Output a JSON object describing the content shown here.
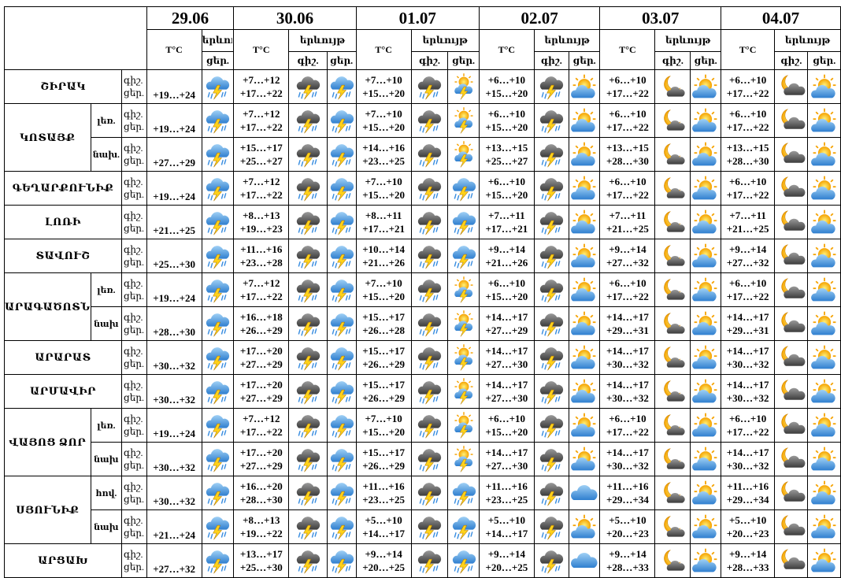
{
  "header": {
    "dates": [
      "29.06",
      "30.06",
      "01.07",
      "02.07",
      "03.07",
      "04.07"
    ],
    "temp_label": "T°C",
    "phen_label": "երևույթ",
    "night": "գիշ.",
    "day": "ցեր."
  },
  "groups": [
    {
      "name": "ՇԻՐԱԿ",
      "temps": [
        "+19…+24",
        "+7…+12",
        "+17…+22",
        "+7…+10",
        "+15…+20",
        "+6…+10",
        "+15…+20",
        "+6…+10",
        "+17…+22",
        "+6…+10",
        "+17…+22"
      ]
    },
    {
      "name": "ԿՈՏԱՅՔ",
      "subs": [
        {
          "name": "լեռ.",
          "temps": [
            "+19…+24",
            "+7…+12",
            "+17…+22",
            "+7…+10",
            "+15…+20",
            "+6…+10",
            "+15…+20",
            "+6…+10",
            "+17…+22",
            "+6…+10",
            "+17…+22"
          ]
        },
        {
          "name": "նախ.",
          "temps": [
            "+27…+29",
            "+15…+17",
            "+25…+27",
            "+14…+16",
            "+23…+25",
            "+13…+15",
            "+25…+27",
            "+13…+15",
            "+28…+30",
            "+13…+15",
            "+28…+30"
          ]
        }
      ]
    },
    {
      "name": "ԳԵՂԱՐՔՈՒՆԻՔ",
      "temps": [
        "+19…+24",
        "+7…+12",
        "+17…+22",
        "+7…+10",
        "+15…+20",
        "+6…+10",
        "+15…+20",
        "+6…+10",
        "+17…+22",
        "+6…+10",
        "+17…+22"
      ]
    },
    {
      "name": "ԼՈՌԻ",
      "temps": [
        "+21…+25",
        "+8…+13",
        "+19…+23",
        "+8…+11",
        "+17…+21",
        "+7…+11",
        "+17…+21",
        "+7…+11",
        "+21…+25",
        "+7…+11",
        "+21…+25"
      ]
    },
    {
      "name": "ՏԱՎՈՒՇ",
      "temps": [
        "+25…+30",
        "+11…+16",
        "+23…+28",
        "+10…+14",
        "+21…+26",
        "+9…+14",
        "+21…+26",
        "+9…+14",
        "+27…+32",
        "+9…+14",
        "+27…+32"
      ]
    },
    {
      "name": "ԱՐԱԳԱԾՈՏՆ",
      "subs": [
        {
          "name": "լեռ.",
          "temps": [
            "+19…+24",
            "+7…+12",
            "+17…+22",
            "+7…+10",
            "+15…+20",
            "+6…+10",
            "+15…+20",
            "+6…+10",
            "+17…+22",
            "+6…+10",
            "+17…+22"
          ]
        },
        {
          "name": "նախ",
          "temps": [
            "+28…+30",
            "+16…+18",
            "+26…+29",
            "+15…+17",
            "+26…+28",
            "+14…+17",
            "+27…+29",
            "+14…+17",
            "+29…+31",
            "+14…+17",
            "+29…+31"
          ]
        }
      ]
    },
    {
      "name": "ԱՐԱՐԱՏ",
      "temps": [
        "+30…+32",
        "+17…+20",
        "+27…+29",
        "+15…+17",
        "+26…+29",
        "+14…+17",
        "+27…+30",
        "+14…+17",
        "+30…+32",
        "+14…+17",
        "+30…+32"
      ]
    },
    {
      "name": "ԱՐՄԱՎԻՐ",
      "temps": [
        "+30…+32",
        "+17…+20",
        "+27…+29",
        "+15…+17",
        "+26…+29",
        "+14…+17",
        "+27…+30",
        "+14…+17",
        "+30…+32",
        "+14…+17",
        "+30…+32"
      ]
    },
    {
      "name": "ՎԱՅՈՑ ՁՈՐ",
      "subs": [
        {
          "name": "լեռ.",
          "temps": [
            "+19…+24",
            "+7…+12",
            "+17…+22",
            "+7…+10",
            "+15…+20",
            "+6…+10",
            "+15…+20",
            "+6…+10",
            "+17…+22",
            "+6…+10",
            "+17…+22"
          ]
        },
        {
          "name": "նախ",
          "temps": [
            "+30…+32",
            "+17…+20",
            "+27…+29",
            "+15…+17",
            "+26…+29",
            "+14…+17",
            "+27…+30",
            "+14…+17",
            "+30…+32",
            "+14…+17",
            "+30…+32"
          ]
        }
      ]
    },
    {
      "name": "ՍՅՈՒՆԻՔ",
      "subs": [
        {
          "name": "հով.",
          "temps": [
            "+30…+32",
            "+16…+20",
            "+28…+30",
            "+11…+16",
            "+23…+25",
            "+11…+16",
            "+23…+25",
            "+11…+16",
            "+29…+34",
            "+11…+16",
            "+29…+34"
          ]
        },
        {
          "name": "նախ",
          "temps": [
            "+21…+24",
            "+8…+13",
            "+19…+22",
            "+5…+10",
            "+14…+17",
            "+5…+10",
            "+14…+17",
            "+5…+10",
            "+20…+23",
            "+5…+10",
            "+20…+23"
          ]
        }
      ]
    },
    {
      "name": "ԱՐՑԱԽ",
      "temps": [
        "+27…+32",
        "+13…+17",
        "+25…+30",
        "+9…+14",
        "+20…+25",
        "+9…+14",
        "+20…+25",
        "+9…+14",
        "+28…+33",
        "+9…+14",
        "+28…+33"
      ]
    }
  ]
}
